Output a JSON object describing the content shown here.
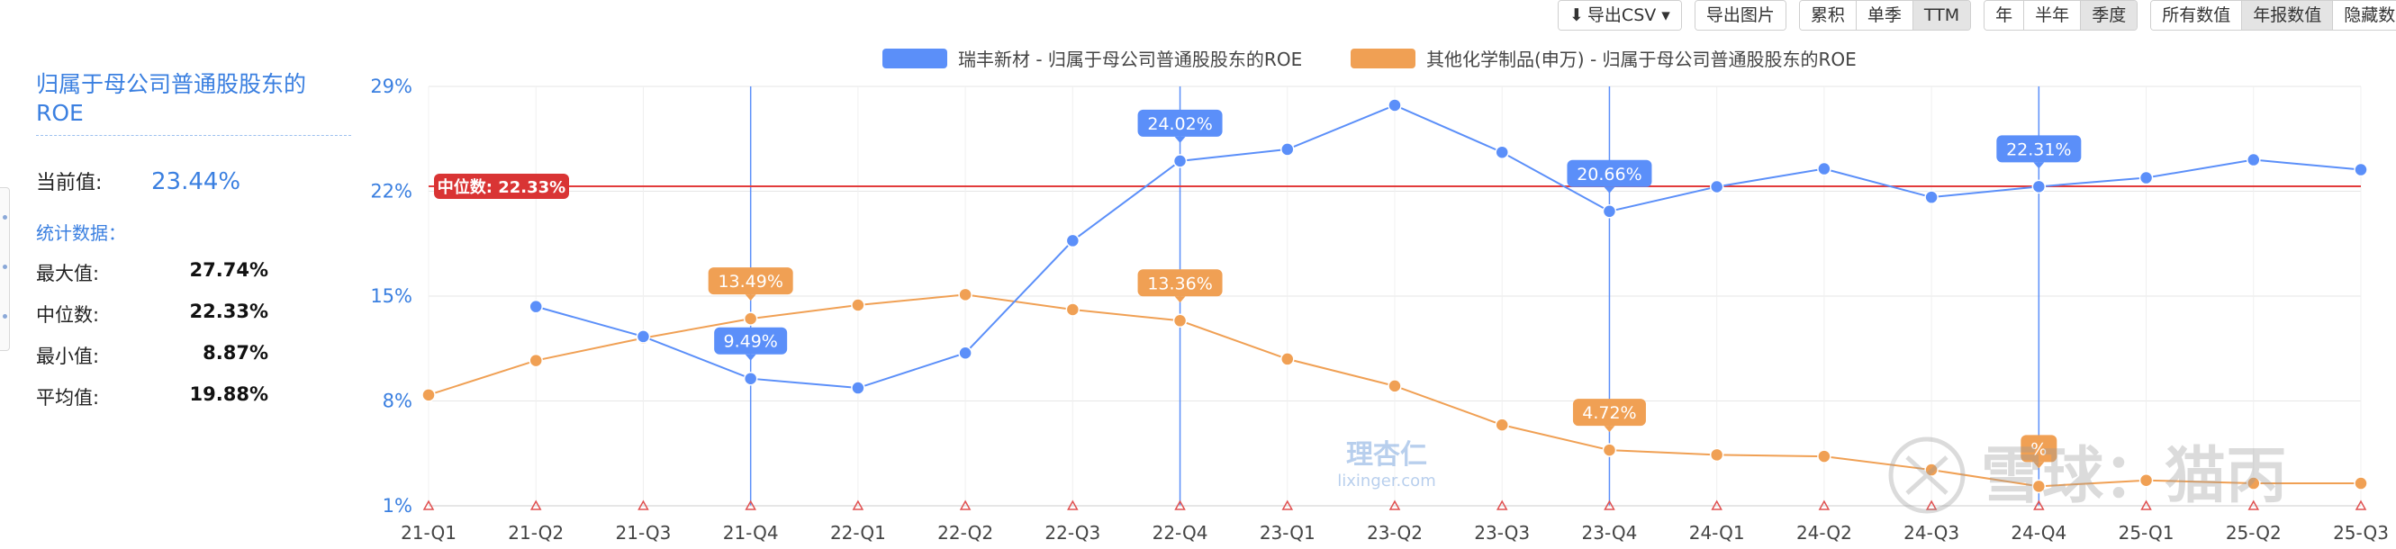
{
  "toolbar": {
    "groups": [
      {
        "buttons": [
          {
            "label": "导出CSV",
            "icon": "download-icon",
            "caret": true
          }
        ]
      },
      {
        "buttons": [
          {
            "label": "导出图片"
          }
        ]
      },
      {
        "buttons": [
          {
            "label": "累积"
          },
          {
            "label": "单季"
          },
          {
            "label": "TTM",
            "active": true
          }
        ]
      },
      {
        "buttons": [
          {
            "label": "年"
          },
          {
            "label": "半年"
          },
          {
            "label": "季度",
            "active": true
          }
        ]
      },
      {
        "buttons": [
          {
            "label": "所有数值"
          },
          {
            "label": "年报数值",
            "active": true
          },
          {
            "label": "隐藏数值"
          }
        ]
      }
    ]
  },
  "sidebar": {
    "title": "归属于母公司普通股股东的ROE",
    "current_label": "当前值:",
    "current_value": "23.44%",
    "stats_title": "统计数据：",
    "stats": [
      {
        "label": "最大值:",
        "value": "27.74%"
      },
      {
        "label": "中位数:",
        "value": "22.33%"
      },
      {
        "label": "最小值:",
        "value": "8.87%"
      },
      {
        "label": "平均值:",
        "value": "19.88%"
      }
    ]
  },
  "chart_data": {
    "type": "line",
    "categories": [
      "21-Q1",
      "21-Q2",
      "21-Q3",
      "21-Q4",
      "22-Q1",
      "22-Q2",
      "22-Q3",
      "22-Q4",
      "23-Q1",
      "23-Q2",
      "23-Q3",
      "23-Q4",
      "24-Q1",
      "24-Q2",
      "24-Q3",
      "24-Q4",
      "25-Q1",
      "25-Q2",
      "25-Q3"
    ],
    "y_ticks": [
      "29%",
      "22%",
      "15%",
      "8%",
      "1%"
    ],
    "ylim": [
      1,
      29
    ],
    "grid": true,
    "legend_position": "top-center",
    "series": [
      {
        "name": "瑞丰新材 - 归属于母公司普通股股东的ROE",
        "color": "#5b8ff9",
        "values": [
          null,
          14.3,
          12.3,
          9.49,
          8.87,
          11.2,
          18.7,
          24.02,
          24.8,
          27.74,
          24.6,
          20.66,
          22.3,
          23.5,
          21.6,
          22.31,
          22.9,
          24.1,
          23.44
        ]
      },
      {
        "name": "其他化学制品(申万) - 归属于母公司普通股股东的ROE",
        "color": "#f0a054",
        "values": [
          8.4,
          10.7,
          12.2,
          13.49,
          14.4,
          15.1,
          14.1,
          13.36,
          10.8,
          9.0,
          6.4,
          4.72,
          4.4,
          4.3,
          3.4,
          2.3,
          2.7,
          2.5,
          2.5
        ]
      }
    ],
    "median": {
      "label": "中位数: 22.33%",
      "value": 22.33
    },
    "annotations": [
      {
        "series": 0,
        "index": 3,
        "text": "9.49%"
      },
      {
        "series": 0,
        "index": 7,
        "text": "24.02%"
      },
      {
        "series": 0,
        "index": 11,
        "text": "20.66%"
      },
      {
        "series": 0,
        "index": 15,
        "text": "22.31%"
      },
      {
        "series": 1,
        "index": 3,
        "text": "13.49%"
      },
      {
        "series": 1,
        "index": 7,
        "text": "13.36%"
      },
      {
        "series": 1,
        "index": 11,
        "text": "4.72%"
      },
      {
        "series": 1,
        "index": 15,
        "text": "%"
      }
    ],
    "annual_markers": [
      3,
      7,
      11,
      15
    ]
  },
  "watermarks": {
    "center_logo": "理杏仁",
    "center_url": "lixinger.com",
    "right_text": "雪球：猫丙"
  }
}
